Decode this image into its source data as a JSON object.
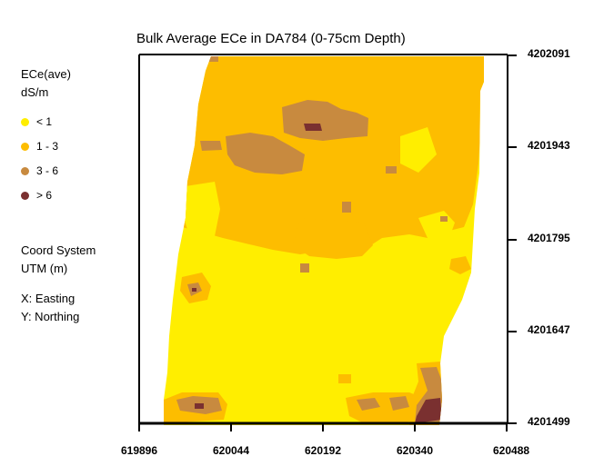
{
  "title": "Bulk Average ECe in DA784 (0-75cm Depth)",
  "legend": {
    "title_line1": "ECe(ave)",
    "title_line2": "dS/m",
    "items": [
      {
        "label": "< 1",
        "color": "#ffee00"
      },
      {
        "label": "1 - 3",
        "color": "#fdbd00"
      },
      {
        "label": "3 - 6",
        "color": "#c88a3f"
      },
      {
        "label": "> 6",
        "color": "#7a3030"
      }
    ]
  },
  "coord_system": {
    "line1": "Coord System",
    "line2": "UTM (m)",
    "x_note": "X: Easting",
    "y_note": "Y: Northing"
  },
  "axes": {
    "x_ticks": [
      "619896",
      "620044",
      "620192",
      "620340",
      "620488"
    ],
    "y_ticks": [
      "4202091",
      "4201943",
      "4201795",
      "4201647",
      "4201499"
    ]
  },
  "colors": {
    "lt1": "#ffee00",
    "c1to3": "#fdbd00",
    "c3to6": "#c88a3f",
    "gt6": "#7a3030",
    "frame": "#000000"
  }
}
